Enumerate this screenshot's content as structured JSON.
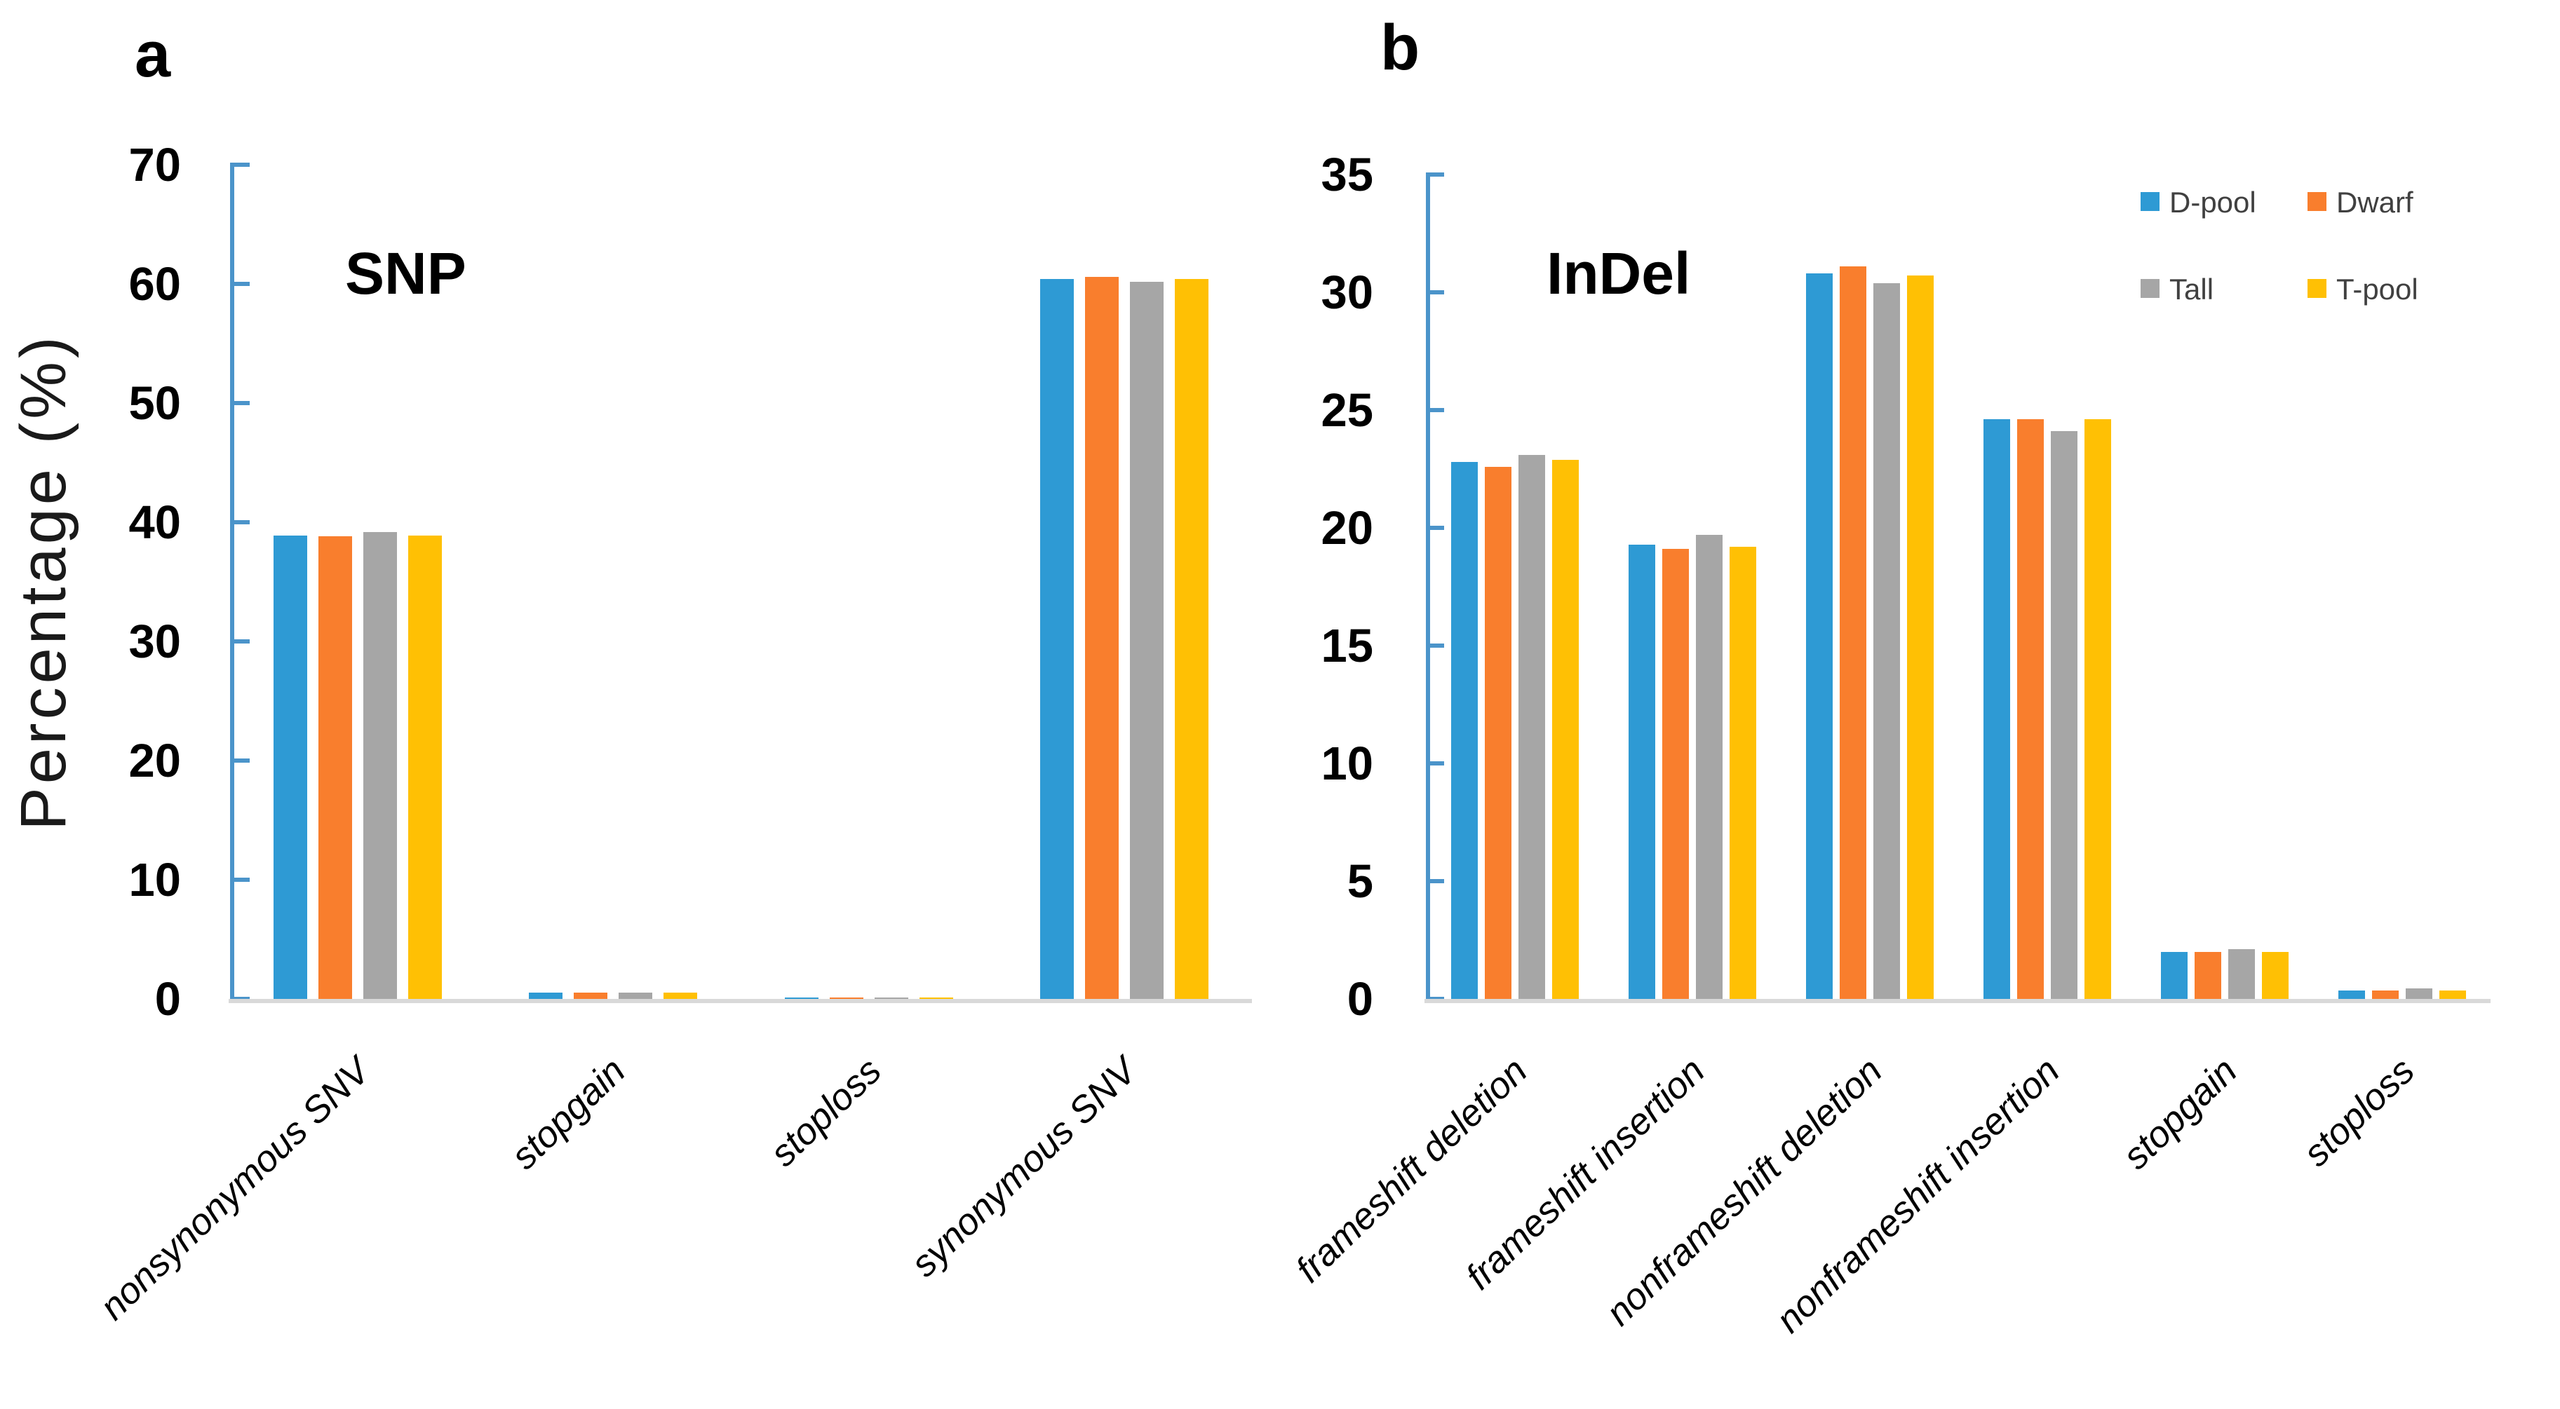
{
  "chart_data": [
    {
      "type": "bar",
      "panel_letter": "a",
      "title": "SNP",
      "ylabel": "Percentage (%)",
      "xlabel": "",
      "ylim": [
        0,
        70
      ],
      "ytick_step": 10,
      "grid": false,
      "legend_position": "none",
      "categories": [
        "nonsynonymous SNV",
        "stopgain",
        "stoploss",
        "synonymous SNV"
      ],
      "series": [
        {
          "name": "D-pool",
          "color": "#2E9AD4",
          "values": [
            38.9,
            0.5,
            0.1,
            60.4
          ]
        },
        {
          "name": "Dwarf",
          "color": "#F97E2D",
          "values": [
            38.8,
            0.5,
            0.1,
            60.6
          ]
        },
        {
          "name": "Tall",
          "color": "#A6A6A6",
          "values": [
            39.2,
            0.55,
            0.1,
            60.2
          ]
        },
        {
          "name": "T-pool",
          "color": "#FFC004",
          "values": [
            38.9,
            0.5,
            0.1,
            60.4
          ]
        }
      ]
    },
    {
      "type": "bar",
      "panel_letter": "b",
      "title": "InDel",
      "ylabel": "",
      "xlabel": "",
      "ylim": [
        0,
        35
      ],
      "ytick_step": 5,
      "grid": false,
      "legend_position": "top-right",
      "categories": [
        "frameshift deletion",
        "frameshift insertion",
        "nonframeshift deletion",
        "nonframeshift insertion",
        "stopgain",
        "stoploss"
      ],
      "series": [
        {
          "name": "D-pool",
          "color": "#2E9AD4",
          "values": [
            22.8,
            19.3,
            30.8,
            24.6,
            2.0,
            0.35
          ]
        },
        {
          "name": "Dwarf",
          "color": "#F97E2D",
          "values": [
            22.6,
            19.1,
            31.1,
            24.6,
            2.0,
            0.35
          ]
        },
        {
          "name": "Tall",
          "color": "#A6A6A6",
          "values": [
            23.1,
            19.7,
            30.4,
            24.1,
            2.1,
            0.45
          ]
        },
        {
          "name": "T-pool",
          "color": "#FFC004",
          "values": [
            22.9,
            19.2,
            30.7,
            24.6,
            2.0,
            0.35
          ]
        }
      ]
    }
  ],
  "styles": {
    "axis_color": "#4B94CA",
    "baseline_color": "#D9D9D9",
    "text_color": "#000000",
    "legend_text_color": "#404040"
  }
}
